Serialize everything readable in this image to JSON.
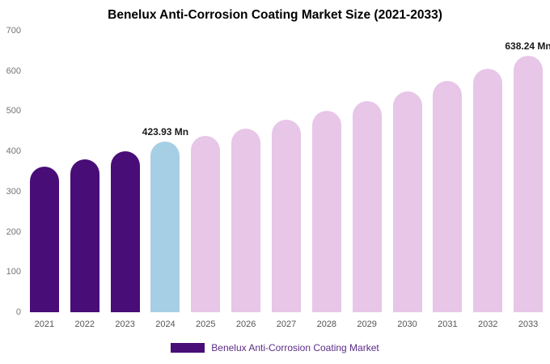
{
  "chart_data": {
    "type": "bar",
    "title": "Benelux Anti-Corrosion Coating Market Size (2021-2033)",
    "categories": [
      "2021",
      "2022",
      "2023",
      "2024",
      "2025",
      "2026",
      "2027",
      "2028",
      "2029",
      "2030",
      "2031",
      "2032",
      "2033"
    ],
    "values": [
      362,
      380,
      400,
      423.93,
      438,
      457,
      478,
      500,
      525,
      550,
      576,
      605,
      638.24
    ],
    "xlabel": "",
    "ylabel": "",
    "ylim": [
      0,
      700
    ],
    "y_ticks": [
      0,
      100,
      200,
      300,
      400,
      500,
      600,
      700
    ],
    "grid": false,
    "legend_position": "bottom",
    "bar_colors": [
      "#490d77",
      "#490d77",
      "#490d77",
      "#a6cfe5",
      "#e7c6e8",
      "#e7c6e8",
      "#e7c6e8",
      "#e7c6e8",
      "#e7c6e8",
      "#e7c6e8",
      "#e7c6e8",
      "#e7c6e8",
      "#e7c6e8"
    ],
    "annotations": [
      {
        "category": "2024",
        "text": "423.93 Mn"
      },
      {
        "category": "2033",
        "text": "638.24 Mn"
      }
    ]
  },
  "legend": {
    "label": "Benelux Anti-Corrosion Coating Market",
    "swatch_color": "#490d77",
    "text_color": "#5b2c87"
  }
}
